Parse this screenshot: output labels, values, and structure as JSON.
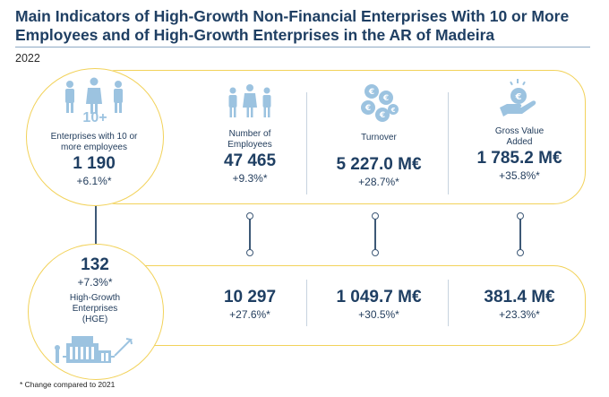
{
  "header": {
    "title": "Main Indicators of High-Growth Non-Financial Enterprises With 10 or More Employees and of High-Growth Enterprises in the AR of Madeira",
    "year": "2022"
  },
  "top": {
    "enterprises": {
      "label": "Enterprises with 10 or more employees",
      "value": "1 190",
      "change": "+6.1%*",
      "icon_text": "10+"
    },
    "employees": {
      "label": "Number of Employees",
      "value": "47 465",
      "change": "+9.3%*"
    },
    "turnover": {
      "label": "Turnover",
      "value": "5 227.0 M€",
      "change": "+28.7%*"
    },
    "gva": {
      "label": "Gross Value Added",
      "value": "1 785.2 M€",
      "change": "+35.8%*"
    }
  },
  "bottom": {
    "hge": {
      "label": "High-Growth Enterprises (HGE)",
      "value": "132",
      "change": "+7.3%*"
    },
    "employees": {
      "value": "10 297",
      "change": "+27.6%*"
    },
    "turnover": {
      "value": "1 049.7 M€",
      "change": "+30.5%*"
    },
    "gva": {
      "value": "381.4 M€",
      "change": "+23.3%*"
    }
  },
  "footnote": "* Change compared to 2021",
  "colors": {
    "accent_yellow": "#f2d25a",
    "icon_blue": "#9cc3e0",
    "text_navy": "#1f3f63",
    "connector": "#3d5876"
  }
}
